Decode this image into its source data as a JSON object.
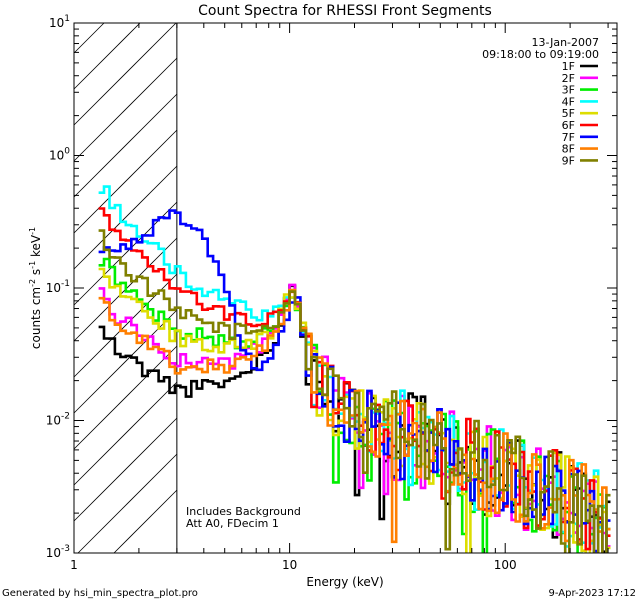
{
  "chart_data": {
    "type": "line",
    "title": "Count Spectra for RHESSI Front Segments",
    "xlabel": "Energy (keV)",
    "ylabel": "counts cm^-2 s^-1 keV^-1",
    "ylabel_parts": {
      "base": "counts cm",
      "e1": "-2",
      "mid1": " s",
      "e2": "-1",
      "mid2": " keV",
      "e3": "-1"
    },
    "x_scale": "log",
    "y_scale": "log",
    "xlim": [
      1.0,
      330.0
    ],
    "ylim": [
      0.001,
      10.0
    ],
    "x_ticks": [
      {
        "value": 1,
        "label": "1"
      },
      {
        "value": 10,
        "label": "10"
      },
      {
        "value": 100,
        "label": "100"
      }
    ],
    "y_ticks": [
      {
        "value": 10,
        "base": "10",
        "exp": "1"
      },
      {
        "value": 1,
        "base": "10",
        "exp": "0"
      },
      {
        "value": 0.1,
        "base": "10",
        "exp": "-1"
      },
      {
        "value": 0.01,
        "base": "10",
        "exp": "-2"
      },
      {
        "value": 0.001,
        "base": "10",
        "exp": "-3"
      }
    ],
    "date": "13-Jan-2007",
    "time_range": "09:18:00 to 09:19:00",
    "annotations": [
      "Includes Background",
      "Att A0, FDecim 1"
    ],
    "hatched_region_kev": [
      1.0,
      3.0
    ],
    "threshold_kev": 3.0,
    "series": [
      {
        "name": "1F",
        "color": "#000000",
        "offset": -0.7,
        "seed": 11
      },
      {
        "name": "2F",
        "color": "#ff00ff",
        "offset": -0.45,
        "seed": 23
      },
      {
        "name": "3F",
        "color": "#00ee00",
        "offset": -0.2,
        "seed": 37
      },
      {
        "name": "4F",
        "color": "#00ffff",
        "offset": 0.3,
        "seed": 41
      },
      {
        "name": "5F",
        "color": "#dddd00",
        "offset": -0.25,
        "seed": 53
      },
      {
        "name": "6F",
        "color": "#ff0000",
        "offset": 0.15,
        "seed": 67
      },
      {
        "name": "7F",
        "color": "#0000ff",
        "offset": -0.1,
        "seed": 79
      },
      {
        "name": "8F",
        "color": "#ff7f00",
        "offset": -0.5,
        "seed": 83
      },
      {
        "name": "9F",
        "color": "#808000",
        "offset": -0.05,
        "seed": 97
      }
    ],
    "base_curve": [
      [
        1.3,
        0.3
      ],
      [
        1.6,
        0.18
      ],
      [
        2.0,
        0.13
      ],
      [
        2.6,
        0.09
      ],
      [
        3.0,
        0.07
      ],
      [
        4.0,
        0.06
      ],
      [
        5.5,
        0.05
      ],
      [
        7.0,
        0.05
      ],
      [
        8.5,
        0.055
      ],
      [
        10.5,
        0.1
      ],
      [
        11.5,
        0.05
      ],
      [
        13.0,
        0.022
      ],
      [
        16.0,
        0.014
      ],
      [
        20.0,
        0.011
      ],
      [
        30.0,
        0.008
      ],
      [
        40.0,
        0.007
      ],
      [
        60.0,
        0.005
      ],
      [
        90.0,
        0.004
      ],
      [
        150.0,
        0.003
      ],
      [
        250.0,
        0.002
      ],
      [
        300.0,
        0.0016
      ]
    ],
    "blue_bump": [
      [
        1.3,
        0.18
      ],
      [
        2.0,
        0.22
      ],
      [
        2.6,
        0.36
      ],
      [
        3.2,
        0.34
      ],
      [
        4.0,
        0.22
      ],
      [
        5.0,
        0.1
      ],
      [
        6.0,
        0.04
      ],
      [
        7.0,
        0.02
      ],
      [
        8.5,
        0.03
      ],
      [
        10.5,
        0.09
      ]
    ]
  },
  "footer": {
    "left": "Generated by hsi_min_spectra_plot.pro",
    "right": "9-Apr-2023 17:12"
  }
}
